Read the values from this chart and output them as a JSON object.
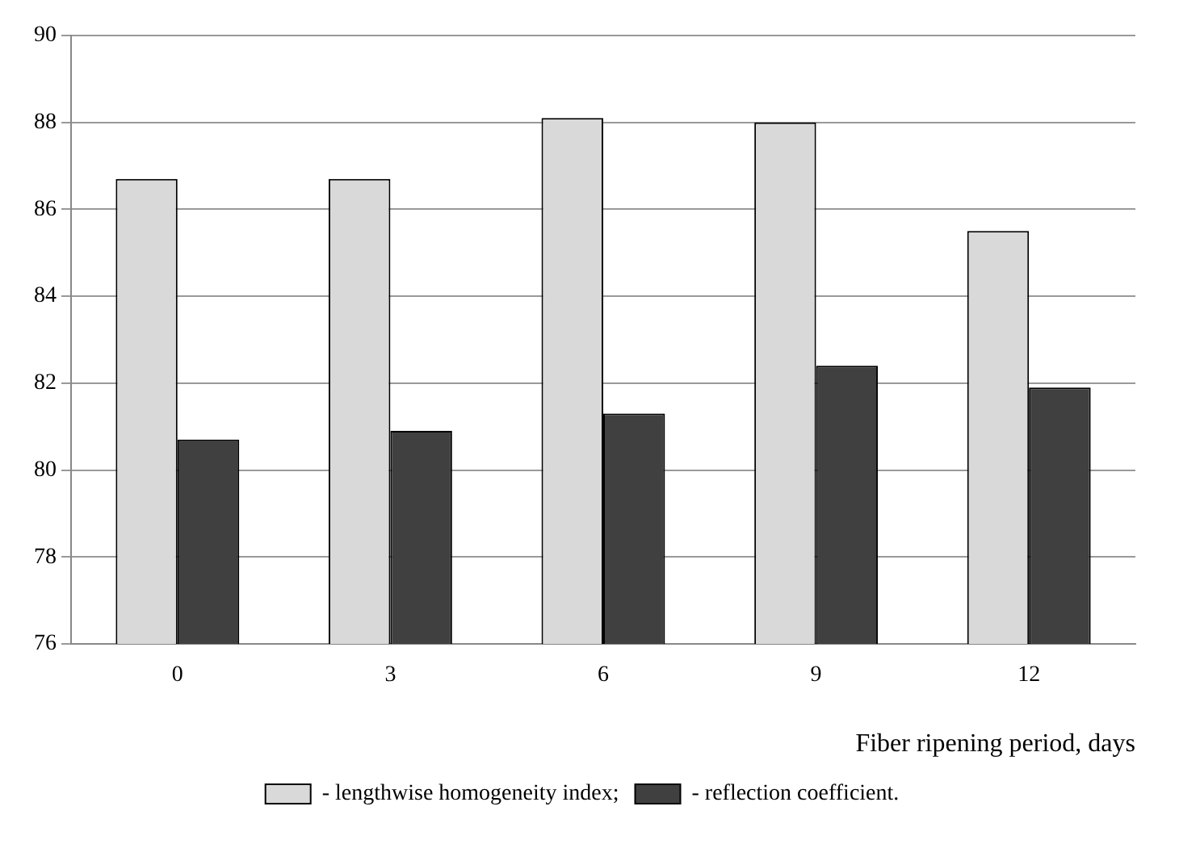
{
  "chart_data": {
    "type": "bar",
    "xlabel": "Fiber ripening period, days",
    "categories": [
      "0",
      "3",
      "6",
      "9",
      "12"
    ],
    "series": [
      {
        "name": "- lengthwise homogeneity index;",
        "color": "#d9d9d9",
        "values": [
          86.7,
          86.7,
          88.1,
          88.0,
          85.5
        ]
      },
      {
        "name": "- reflection coefficient.",
        "color": "#404040",
        "values": [
          80.7,
          80.9,
          81.3,
          82.4,
          81.9
        ]
      }
    ],
    "ylim": [
      76,
      90
    ],
    "yticks": [
      76,
      78,
      80,
      82,
      84,
      86,
      88,
      90
    ],
    "grid": "y",
    "legend": "bottom"
  }
}
